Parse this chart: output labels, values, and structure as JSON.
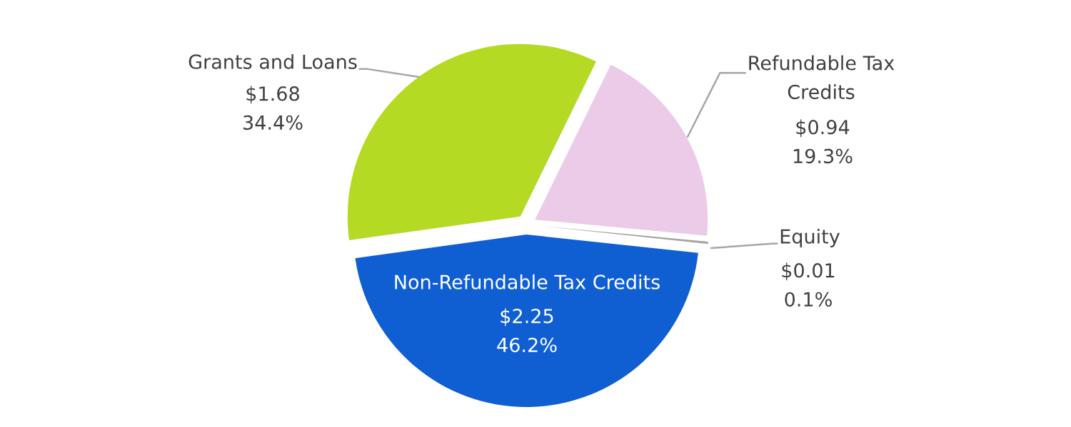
{
  "chart_data": {
    "type": "pie",
    "categories": [
      "Grants and Loans",
      "Refundable Tax\nCredits",
      "Equity",
      "Non-Refundable Tax Credits"
    ],
    "values": [
      1.68,
      0.94,
      0.01,
      2.25
    ],
    "colors": [
      "#b4da24",
      "#eccbe9",
      "#a5a5a5",
      "#0f5fd3"
    ],
    "value_labels": [
      "$1.68\n34.4%",
      "$0.94\n19.3%",
      "$0.01\n0.1%",
      "$2.25\n46.2%"
    ]
  }
}
